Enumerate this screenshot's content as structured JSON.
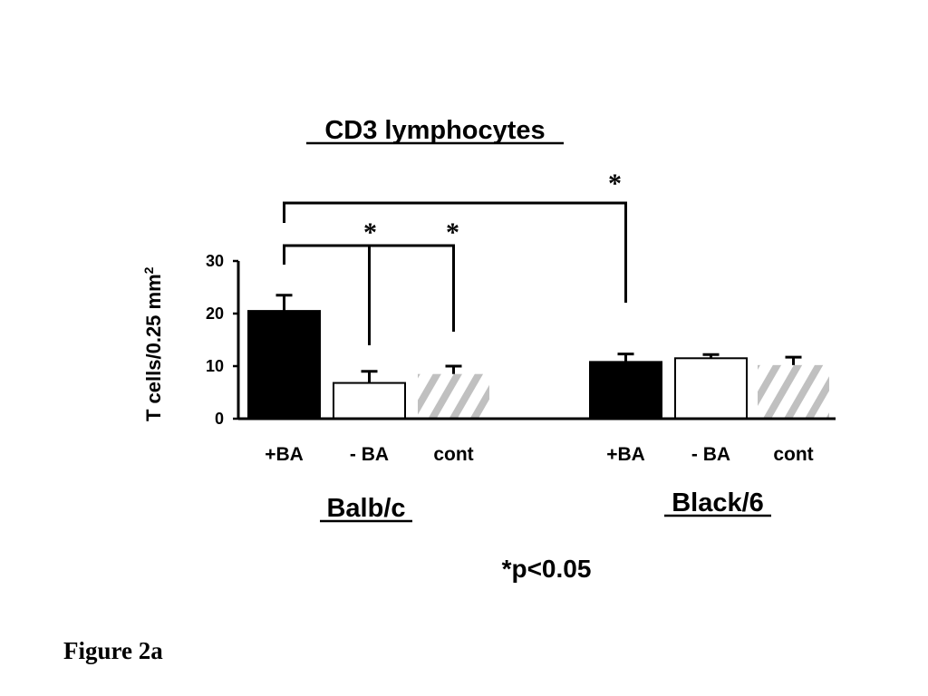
{
  "chart_data": {
    "type": "bar",
    "title": "CD3 lymphocytes",
    "ylabel": "T cells/0.25 mm",
    "ylabel_superscript": "2",
    "ylim": [
      0,
      30
    ],
    "yticks": [
      0,
      10,
      20,
      30
    ],
    "groups": [
      {
        "name": "Balb/c",
        "bars": [
          {
            "category": "+BA",
            "value": 20.5,
            "error": 3.0,
            "fill": "solid-black"
          },
          {
            "category": "- BA",
            "value": 6.8,
            "error": 2.2,
            "fill": "white"
          },
          {
            "category": "cont",
            "value": 8.5,
            "error": 1.5,
            "fill": "gray-hatched"
          }
        ]
      },
      {
        "name": "Black/6",
        "bars": [
          {
            "category": "+BA",
            "value": 10.8,
            "error": 1.5,
            "fill": "solid-black"
          },
          {
            "category": "- BA",
            "value": 11.5,
            "error": 0.7,
            "fill": "white"
          },
          {
            "category": "cont",
            "value": 10.2,
            "error": 1.5,
            "fill": "gray-hatched"
          }
        ]
      }
    ],
    "significance": [
      {
        "from": "Balb/c +BA",
        "to": "Balb/c - BA",
        "label": "*"
      },
      {
        "from": "Balb/c +BA",
        "to": "Balb/c cont",
        "label": "*"
      },
      {
        "from": "Balb/c +BA",
        "to": "Black/6 +BA",
        "label": "*"
      }
    ],
    "note": "*p<0.05",
    "colors": {
      "solid": "#000000",
      "open": "#ffffff",
      "hatch": "#c0c0c0"
    },
    "grid": false,
    "legend": "none"
  },
  "caption": "Figure 2a"
}
